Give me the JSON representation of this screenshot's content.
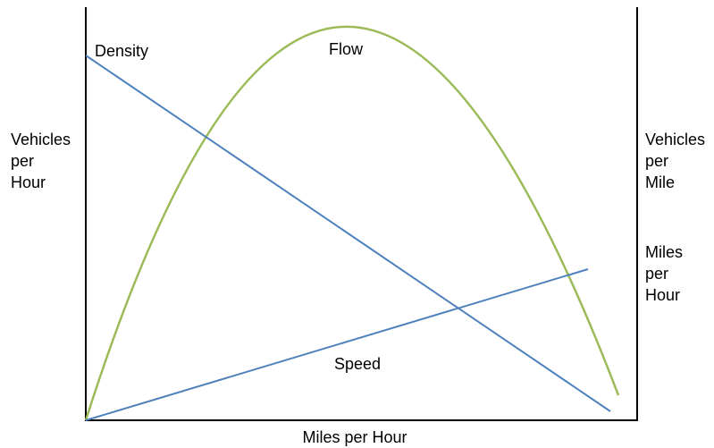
{
  "curves": {
    "density": "Density",
    "flow": "Flow",
    "speed": "Speed"
  },
  "left_axis_label": [
    "Vehicles",
    "per",
    "Hour"
  ],
  "right_axis_labels": [
    [
      "Vehicles",
      "per",
      "Mile"
    ],
    [
      "Miles",
      "per",
      "Hour"
    ]
  ],
  "bottom_axis_label": "Miles per Hour"
}
